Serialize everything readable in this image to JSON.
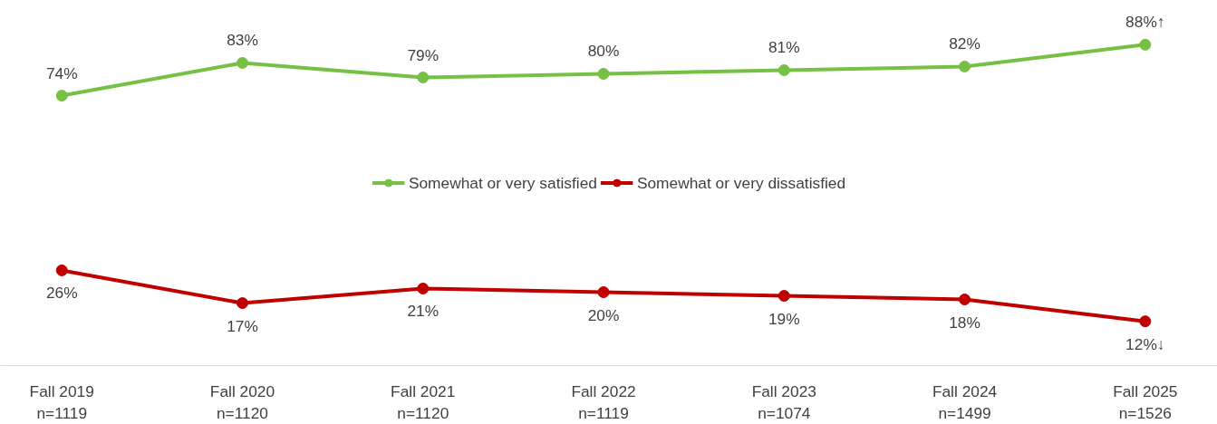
{
  "chart_data": {
    "type": "line",
    "categories": [
      "Fall 2019\nn=1119",
      "Fall 2020\nn=1120",
      "Fall 2021\nn=1120",
      "Fall 2022\nn=1119",
      "Fall 2023\nn=1074",
      "Fall 2024\nn=1499",
      "Fall 2025\nn=1526"
    ],
    "series": [
      {
        "name": "Somewhat or very satisfied",
        "color": "#76c043",
        "values": [
          74,
          83,
          79,
          80,
          81,
          82,
          88
        ],
        "value_labels": [
          "74%",
          "83%",
          "79%",
          "80%",
          "81%",
          "82%",
          "88%↑"
        ]
      },
      {
        "name": "Somewhat or very dissatisfied",
        "color": "#c00000",
        "values": [
          26,
          17,
          21,
          20,
          19,
          18,
          12
        ],
        "value_labels": [
          "26%",
          "17%",
          "21%",
          "20%",
          "19%",
          "18%",
          "12%↓"
        ]
      }
    ],
    "tick_labels": "x",
    "legend": "center",
    "marker": "circle",
    "line_style": "solid",
    "grid": false
  }
}
